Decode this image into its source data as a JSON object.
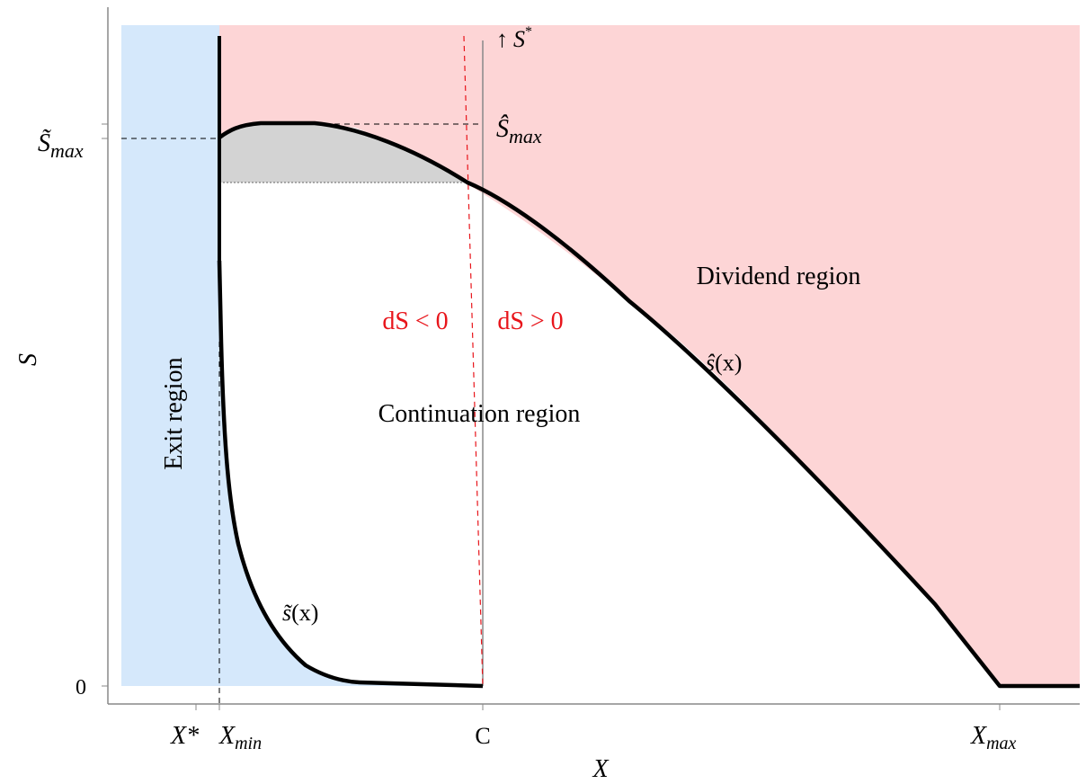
{
  "figure": {
    "y_axis": {
      "label": "S",
      "ticks": {
        "zero": "0"
      }
    },
    "x_axis": {
      "label": "X",
      "ticks": {
        "x_star": "X*",
        "x_min": "X",
        "x_min_sub": "min",
        "c": "C",
        "x_max": "X",
        "x_max_sub": "max"
      }
    },
    "s_tilde_max": {
      "base": "S̃",
      "sub": "max"
    },
    "s_hat_max": {
      "base": "Ŝ",
      "sub": "max"
    },
    "s_star_arrow": {
      "arrow": "↑",
      "base": "S",
      "sup": "*"
    },
    "regions": {
      "exit": "Exit  region",
      "continuation": "Continuation region",
      "dividend": "Dividend  region"
    },
    "curves": {
      "s_hat": {
        "base": "ŝ",
        "paren": "(x)"
      },
      "s_tilde": {
        "base": "s̃",
        "paren": "(x)"
      }
    },
    "annotations": {
      "ds_negative": "dS < 0",
      "ds_positive": "dS > 0"
    },
    "colors": {
      "exit_region": "#d5e8fb",
      "dividend_region": "#fdd5d6",
      "shaded_area": "#d3d3d3",
      "red_text": "#e8151b",
      "axis": "#888888",
      "curve": "#000000"
    }
  }
}
